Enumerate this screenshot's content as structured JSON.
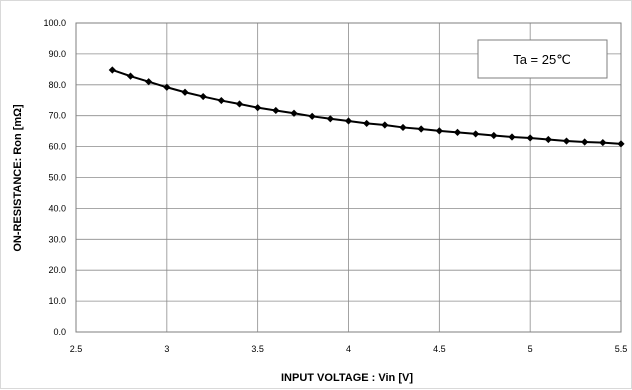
{
  "chart_data": {
    "type": "line",
    "xlabel": "INPUT VOLTAGE : Vin [V]",
    "ylabel": "ON-RESISTANCE: Ron [mΩ]",
    "xlim": [
      2.5,
      5.5
    ],
    "ylim": [
      0.0,
      100.0
    ],
    "x_ticks": [
      "2.5",
      "3",
      "3.5",
      "4",
      "4.5",
      "5",
      "5.5"
    ],
    "y_ticks": [
      "0.0",
      "10.0",
      "20.0",
      "30.0",
      "40.0",
      "50.0",
      "60.0",
      "70.0",
      "80.0",
      "90.0",
      "100.0"
    ],
    "grid": true,
    "annotation": "Ta = 25℃",
    "line_color": "#000000",
    "marker": "diamond",
    "series": [
      {
        "x": [
          2.7,
          2.8,
          2.9,
          3.0,
          3.1,
          3.2,
          3.3,
          3.4,
          3.5,
          3.6,
          3.7,
          3.8,
          3.9,
          4.0,
          4.1,
          4.2,
          4.3,
          4.4,
          4.5,
          4.6,
          4.7,
          4.8,
          4.9,
          5.0,
          5.1,
          5.2,
          5.3,
          5.4,
          5.5
        ],
        "values": [
          84.8,
          82.8,
          81.0,
          79.2,
          77.6,
          76.2,
          74.9,
          73.8,
          72.6,
          71.7,
          70.8,
          69.8,
          69.0,
          68.3,
          67.5,
          67.0,
          66.2,
          65.7,
          65.1,
          64.6,
          64.1,
          63.6,
          63.1,
          62.8,
          62.3,
          61.8,
          61.5,
          61.3,
          60.9
        ]
      }
    ]
  }
}
